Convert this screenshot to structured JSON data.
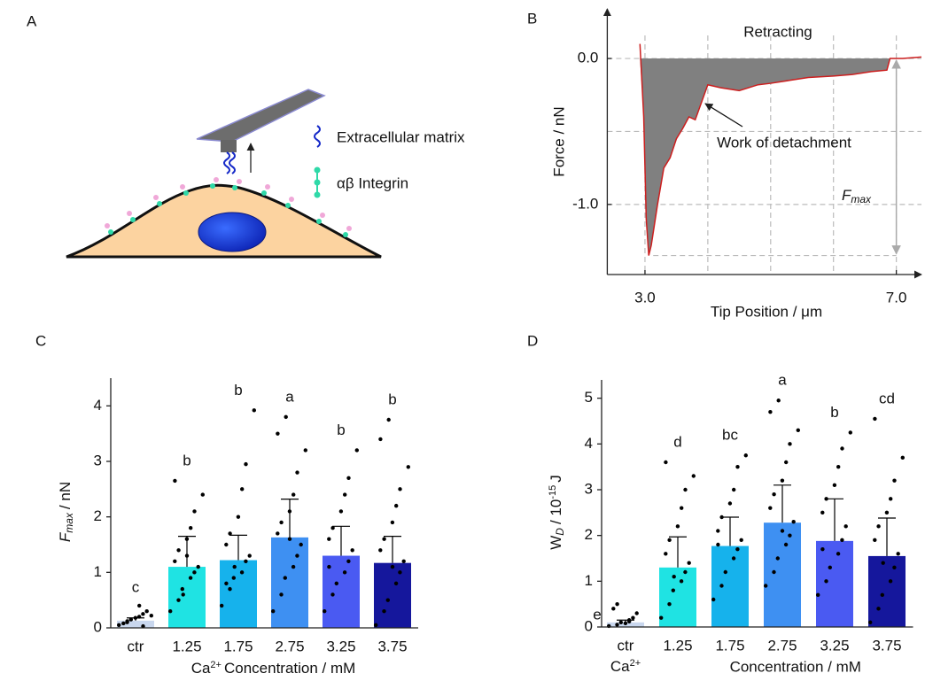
{
  "diagram": {
    "panel": "A",
    "legend": [
      "Extracellular matrix",
      "αβ Integrin"
    ]
  },
  "chart_data": [
    {
      "type": "line",
      "panel": "B",
      "title": "Retracting",
      "xlabel": "Tip Position / μm",
      "ylabel": "Force / nN",
      "annotation": "Work of detachment",
      "fmax_parts": [
        {
          "text": "F",
          "style": "italic"
        },
        {
          "text": "max",
          "style": "sub-italic"
        }
      ],
      "x": [
        2.92,
        2.98,
        3.02,
        3.06,
        3.1,
        3.2,
        3.3,
        3.4,
        3.5,
        3.6,
        3.7,
        3.8,
        3.9,
        4.0,
        4.2,
        4.5,
        4.8,
        5.0,
        5.3,
        5.6,
        6.0,
        6.3,
        6.6,
        6.85,
        6.9,
        7.1,
        7.4
      ],
      "y": [
        0.1,
        -0.4,
        -1.1,
        -1.35,
        -1.28,
        -1.0,
        -0.75,
        -0.68,
        -0.55,
        -0.48,
        -0.4,
        -0.42,
        -0.3,
        -0.18,
        -0.2,
        -0.22,
        -0.18,
        -0.17,
        -0.15,
        -0.13,
        -0.12,
        -0.11,
        -0.09,
        -0.08,
        0.0,
        0.0,
        0.01
      ],
      "color": "#cc1f1f",
      "fill": "#808080",
      "xlim": [
        2.4,
        7.4
      ],
      "ylim": [
        -1.48,
        0.34
      ],
      "xticks": [
        {
          "value": 3,
          "label": "3.0"
        },
        {
          "value": 7,
          "label": "7.0"
        }
      ],
      "yticks": [
        {
          "value": 0,
          "label": "0.0"
        },
        {
          "value": -1,
          "label": "-1.0"
        }
      ],
      "xgrid": [
        3,
        4,
        5,
        6,
        7
      ],
      "ygrid": [
        0,
        -0.5,
        -1
      ]
    },
    {
      "type": "bar",
      "panel": "C",
      "ylabel": [
        {
          "text": "F",
          "style": "italic"
        },
        {
          "text": "max",
          "style": "sub-italic"
        },
        {
          "text": "/ nN"
        }
      ],
      "xlabel": [
        {
          "text": "Ca"
        },
        {
          "text": "2+",
          "style": "sup"
        },
        {
          "text": "Concentration / mM"
        }
      ],
      "categories": [
        "ctr",
        "1.25",
        "1.75",
        "2.75",
        "3.25",
        "3.75"
      ],
      "values": [
        0.13,
        1.1,
        1.22,
        1.63,
        1.3,
        1.17
      ],
      "errors": [
        0.05,
        0.55,
        0.45,
        0.69,
        0.53,
        0.48
      ],
      "letters": [
        "c",
        "b",
        "b",
        "a",
        "b",
        "b"
      ],
      "colors": [
        "#c9d7ee",
        "#1fe3e3",
        "#16b2ec",
        "#3e90f2",
        "#4a5af2",
        "#15179c"
      ],
      "points": [
        [
          0.05,
          0.1,
          0.15,
          0.2,
          0.25,
          0.3,
          0.08,
          0.12,
          0.18,
          0.4,
          0.03,
          0.22
        ],
        [
          0.3,
          0.5,
          0.7,
          0.9,
          1.0,
          1.1,
          1.2,
          1.4,
          1.6,
          1.8,
          2.1,
          2.4,
          2.65,
          0.6,
          1.3
        ],
        [
          0.4,
          0.7,
          0.9,
          1.0,
          1.2,
          1.3,
          1.5,
          1.7,
          2.0,
          2.5,
          2.95,
          3.92,
          0.8,
          1.1
        ],
        [
          0.3,
          0.6,
          0.9,
          1.1,
          1.3,
          1.5,
          1.7,
          1.9,
          2.1,
          2.4,
          2.8,
          3.2,
          3.5,
          3.8,
          1.6
        ],
        [
          0.3,
          0.6,
          0.8,
          1.0,
          1.2,
          1.4,
          1.6,
          1.8,
          2.1,
          2.4,
          2.7,
          3.2,
          1.1
        ],
        [
          0.05,
          0.3,
          0.5,
          0.8,
          1.0,
          1.2,
          1.4,
          1.6,
          1.9,
          2.2,
          2.5,
          2.9,
          3.4,
          3.75,
          1.1
        ]
      ],
      "ylim": [
        0,
        4.5
      ],
      "yticks": [
        0,
        1,
        2,
        3,
        4
      ]
    },
    {
      "type": "bar",
      "panel": "D",
      "ylabel": [
        {
          "text": "W"
        },
        {
          "text": "D",
          "style": "sub-italic"
        },
        {
          "text": "/ 10"
        },
        {
          "text": "-15",
          "style": "sup"
        },
        {
          "text": "J"
        }
      ],
      "xlabel": [
        {
          "text": "Ca"
        },
        {
          "text": "2+",
          "style": "sup"
        },
        {
          "text": "Concentration / mM"
        }
      ],
      "categories": [
        "ctr",
        "1.25",
        "1.75",
        "2.75",
        "3.25",
        "3.75"
      ],
      "values": [
        0.1,
        1.3,
        1.77,
        2.28,
        1.88,
        1.55
      ],
      "errors": [
        0.05,
        0.67,
        0.63,
        0.82,
        0.92,
        0.83
      ],
      "letters": [
        "e",
        "d",
        "bc",
        "a",
        "b",
        "cd"
      ],
      "colors": [
        "#c9d7ee",
        "#1fe3e3",
        "#16b2ec",
        "#3e90f2",
        "#4a5af2",
        "#15179c"
      ],
      "points": [
        [
          0.02,
          0.05,
          0.1,
          0.15,
          0.2,
          0.3,
          0.4,
          0.5,
          0.08,
          0.12
        ],
        [
          0.2,
          0.5,
          0.8,
          1.0,
          1.2,
          1.4,
          1.6,
          1.9,
          2.2,
          2.6,
          3.0,
          3.3,
          3.6,
          1.1
        ],
        [
          0.6,
          0.9,
          1.2,
          1.5,
          1.7,
          1.9,
          2.1,
          2.4,
          2.7,
          3.0,
          3.5,
          3.75,
          1.8
        ],
        [
          0.9,
          1.2,
          1.5,
          1.8,
          2.0,
          2.3,
          2.6,
          2.9,
          3.2,
          3.6,
          4.0,
          4.3,
          4.7,
          4.95,
          2.1
        ],
        [
          0.7,
          1.0,
          1.3,
          1.6,
          1.9,
          2.2,
          2.5,
          2.8,
          3.1,
          3.5,
          3.9,
          4.25,
          1.7
        ],
        [
          0.1,
          0.4,
          0.7,
          1.0,
          1.3,
          1.6,
          1.9,
          2.2,
          2.5,
          2.8,
          3.2,
          3.7,
          4.55,
          1.4
        ]
      ],
      "ylim": [
        0,
        5.4
      ],
      "yticks": [
        0,
        1,
        2,
        3,
        4,
        5
      ]
    }
  ]
}
